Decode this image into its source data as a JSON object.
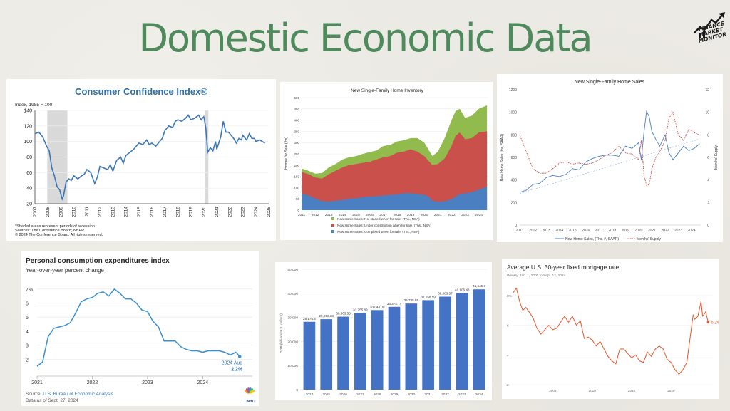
{
  "page": {
    "title": "Domestic Economic Data",
    "logo": {
      "line1": "FINANCE",
      "line2": "MARKET",
      "line3": "MONITOR"
    }
  },
  "chart_data": [
    {
      "id": "cci",
      "type": "line",
      "title": "Consumer Confidence Index®",
      "ylabel": "Index, 1985 = 100",
      "ylim": [
        20,
        140
      ],
      "yticks": [
        20,
        40,
        60,
        80,
        100,
        120,
        140
      ],
      "xticks": [
        "2007",
        "2008",
        "2009",
        "2010",
        "2011",
        "2012",
        "2013",
        "2014",
        "2015",
        "2016",
        "2017",
        "2018",
        "2019",
        "2020",
        "2021",
        "2022",
        "2023",
        "2024",
        "2025"
      ],
      "xrange": [
        2007,
        2025
      ],
      "recessions": [
        [
          2007.95,
          2009.5
        ],
        [
          2020.1,
          2020.35
        ]
      ],
      "x": [
        2007,
        2007.3,
        2007.6,
        2007.9,
        2008.1,
        2008.3,
        2008.5,
        2008.7,
        2008.9,
        2009.1,
        2009.2,
        2009.4,
        2009.6,
        2009.8,
        2010,
        2010.3,
        2010.6,
        2010.8,
        2011,
        2011.3,
        2011.6,
        2011.8,
        2012,
        2012.3,
        2012.6,
        2012.8,
        2013,
        2013.3,
        2013.6,
        2013.8,
        2014,
        2014.3,
        2014.6,
        2014.8,
        2015,
        2015.3,
        2015.6,
        2015.8,
        2016,
        2016.3,
        2016.6,
        2016.8,
        2017,
        2017.3,
        2017.6,
        2017.8,
        2018,
        2018.3,
        2018.6,
        2018.8,
        2019,
        2019.3,
        2019.6,
        2019.8,
        2020,
        2020.15,
        2020.3,
        2020.5,
        2020.7,
        2020.9,
        2021,
        2021.3,
        2021.5,
        2021.7,
        2021.9,
        2022,
        2022.3,
        2022.5,
        2022.7,
        2022.9,
        2023,
        2023.3,
        2023.5,
        2023.7,
        2023.9,
        2024,
        2024.3,
        2024.5,
        2024.7
      ],
      "y": [
        110,
        112,
        106,
        94,
        88,
        66,
        56,
        42,
        38,
        26,
        30,
        48,
        52,
        50,
        56,
        52,
        56,
        58,
        64,
        60,
        46,
        54,
        68,
        66,
        64,
        70,
        62,
        76,
        80,
        72,
        82,
        86,
        90,
        94,
        98,
        96,
        102,
        96,
        98,
        94,
        100,
        104,
        114,
        120,
        118,
        126,
        128,
        126,
        130,
        134,
        128,
        130,
        134,
        128,
        132,
        118,
        86,
        92,
        88,
        100,
        90,
        106,
        126,
        112,
        112,
        110,
        104,
        98,
        104,
        102,
        108,
        102,
        110,
        104,
        104,
        100,
        102,
        100,
        98
      ]
    },
    {
      "id": "inventory",
      "type": "area",
      "title": "New Single-Family Home Inventory",
      "ylabel": "Homes for Sale (ths)",
      "ylim": [
        0,
        500
      ],
      "yticks": [
        0,
        50,
        100,
        150,
        200,
        250,
        300,
        350,
        400,
        450,
        500
      ],
      "xticks": [
        "2011",
        "2012",
        "2013",
        "2014",
        "2015",
        "2016",
        "2017",
        "2018",
        "2019",
        "2020",
        "2021",
        "2022",
        "2023",
        "2024"
      ],
      "xrange": [
        2011,
        2024.7
      ],
      "x": [
        2011,
        2011.5,
        2012,
        2012.5,
        2013,
        2013.5,
        2014,
        2014.5,
        2015,
        2015.5,
        2016,
        2016.5,
        2017,
        2017.5,
        2018,
        2018.5,
        2019,
        2019.5,
        2020,
        2020.3,
        2020.6,
        2021,
        2021.5,
        2022,
        2022.3,
        2022.6,
        2023,
        2023.5,
        2024,
        2024.6
      ],
      "series": [
        {
          "name": "New Home Sales: Completed when for sale, (Ths., NSA)",
          "color": "#4a7fc1",
          "values": [
            75,
            65,
            52,
            40,
            38,
            42,
            45,
            50,
            52,
            58,
            60,
            62,
            64,
            68,
            70,
            75,
            75,
            72,
            68,
            60,
            42,
            36,
            40,
            48,
            60,
            72,
            75,
            80,
            90,
            105
          ]
        },
        {
          "name": "New Home Sales: Under construction when for sale, (Ths., NSA)",
          "color": "#c9504b",
          "values": [
            170,
            160,
            145,
            140,
            160,
            175,
            190,
            200,
            205,
            210,
            215,
            225,
            235,
            240,
            255,
            260,
            270,
            260,
            240,
            220,
            200,
            205,
            230,
            285,
            330,
            345,
            315,
            320,
            345,
            350
          ]
        },
        {
          "name": "New Home Sales: Not started when for sale, (Ths., NSA)",
          "color": "#92bb4e",
          "values": [
            185,
            175,
            162,
            165,
            190,
            205,
            225,
            235,
            240,
            250,
            258,
            265,
            285,
            290,
            305,
            310,
            320,
            320,
            300,
            270,
            240,
            260,
            320,
            400,
            440,
            450,
            410,
            420,
            450,
            465
          ]
        }
      ]
    },
    {
      "id": "homesales",
      "type": "line",
      "title": "New Single-Family Home Sales",
      "ylabel": "New Home Sales (ths, SAAR)",
      "y2label": "Months' Supply",
      "ylim": [
        0,
        1200
      ],
      "y2lim": [
        0,
        12
      ],
      "yticks": [
        0,
        200,
        400,
        600,
        800,
        1000,
        1200
      ],
      "y2ticks": [
        0,
        2,
        4,
        6,
        8,
        10,
        12
      ],
      "xticks": [
        "2011",
        "2012",
        "2013",
        "2014",
        "2015",
        "2016",
        "2017",
        "2018",
        "2019",
        "2020",
        "2021",
        "2022",
        "2023",
        "2024"
      ],
      "xrange": [
        2011,
        2024.7
      ],
      "series": [
        {
          "name": "New Home Sales, (Ths. #, SAAR)",
          "color": "#4a7fc1",
          "x": [
            2011,
            2011.5,
            2012,
            2012.5,
            2013,
            2013.5,
            2014,
            2014.5,
            2015,
            2015.5,
            2016,
            2016.5,
            2017,
            2017.5,
            2018,
            2018.5,
            2019,
            2019.5,
            2020,
            2020.2,
            2020.4,
            2020.6,
            2020.8,
            2021,
            2021.3,
            2021.6,
            2022,
            2022.3,
            2022.6,
            2023,
            2023.4,
            2023.8,
            2024.2,
            2024.6
          ],
          "values": [
            290,
            310,
            360,
            370,
            420,
            440,
            430,
            450,
            500,
            490,
            560,
            590,
            610,
            620,
            620,
            610,
            700,
            680,
            730,
            580,
            820,
            1010,
            960,
            830,
            760,
            700,
            800,
            640,
            580,
            640,
            700,
            660,
            680,
            720
          ]
        },
        {
          "name": "Months' Supply",
          "color": "#c0504d",
          "dashed": true,
          "x": [
            2011,
            2011.5,
            2012,
            2012.5,
            2013,
            2013.5,
            2014,
            2014.5,
            2015,
            2015.5,
            2016,
            2016.5,
            2017,
            2017.5,
            2018,
            2018.5,
            2019,
            2019.5,
            2020,
            2020.2,
            2020.4,
            2020.6,
            2020.8,
            2021,
            2021.3,
            2021.6,
            2022,
            2022.3,
            2022.6,
            2023,
            2023.4,
            2023.8,
            2024.2,
            2024.6
          ],
          "values": [
            8,
            6.5,
            5,
            4.6,
            4.6,
            5,
            5.5,
            5.6,
            5.4,
            5.5,
            5.4,
            5.5,
            5.8,
            6.2,
            6.4,
            7,
            6.4,
            6.3,
            5.8,
            7.5,
            4.5,
            3.5,
            3.6,
            5,
            6,
            6.5,
            7.5,
            9.5,
            10,
            8,
            7.5,
            8.5,
            8.2,
            8
          ]
        }
      ]
    },
    {
      "id": "pce",
      "type": "line",
      "title": "Personal consumption expenditures index",
      "subtitle": "Year-over-year percent change",
      "ylim": [
        1,
        7.5
      ],
      "yticks": [
        2,
        3,
        4,
        5,
        6,
        7
      ],
      "ytick_labels": [
        "2",
        "3",
        "4",
        "5",
        "6",
        "7%"
      ],
      "xticks": [
        "2021",
        "2022",
        "2023",
        "2024"
      ],
      "xrange": [
        2021,
        2024.9
      ],
      "x": [
        2021,
        2021.1,
        2021.2,
        2021.3,
        2021.4,
        2021.5,
        2021.6,
        2021.7,
        2021.8,
        2021.9,
        2022,
        2022.1,
        2022.2,
        2022.3,
        2022.4,
        2022.5,
        2022.6,
        2022.7,
        2022.8,
        2022.9,
        2023,
        2023.1,
        2023.2,
        2023.3,
        2023.4,
        2023.5,
        2023.6,
        2023.7,
        2023.8,
        2023.9,
        2024,
        2024.1,
        2024.2,
        2024.3,
        2024.4,
        2024.5,
        2024.6,
        2024.67
      ],
      "y": [
        1.5,
        1.8,
        3.6,
        4.2,
        4.3,
        4.4,
        4.6,
        5.3,
        6.1,
        6.3,
        6.4,
        6.7,
        6.8,
        6.5,
        7.0,
        6.7,
        6.3,
        6.3,
        6.0,
        5.5,
        5.4,
        4.7,
        4.3,
        3.3,
        3.3,
        3.3,
        2.9,
        2.7,
        2.6,
        2.6,
        2.5,
        2.6,
        2.6,
        2.6,
        2.5,
        2.3,
        2.5,
        2.2
      ],
      "annotation": {
        "label1": "2024 Aug",
        "label2": "2.2%"
      },
      "source_prefix": "Source: ",
      "source_link": "U.S. Bureau of Economic Analysis",
      "date_text": "Data as of Sept. 27, 2024",
      "brand": "CNBC"
    },
    {
      "id": "gdp",
      "type": "bar",
      "ylabel": "GDP (billions U.S. dollars)",
      "ylim": [
        0,
        50000
      ],
      "yticks": [
        0,
        10000,
        20000,
        30000,
        40000,
        50000
      ],
      "ytick_labels": [
        "0",
        "10,000",
        "20,000",
        "30,000",
        "40,000",
        "50,000"
      ],
      "categories": [
        "2024",
        "2025",
        "2026",
        "2027",
        "2028",
        "2029",
        "2030",
        "2031",
        "2032",
        "2033",
        "2034"
      ],
      "values": [
        28176.6,
        29256.38,
        30303.55,
        31755.89,
        33043.09,
        34374.74,
        35745.85,
        37158.59,
        38603.37,
        40106.48,
        41645.7
      ],
      "value_labels": [
        "28,176.6",
        "29,256.38",
        "30,303.55",
        "31,755.89",
        "33,043.09",
        "34,374.74",
        "35,745.85",
        "37,158.59",
        "38,603.37",
        "40,106.48",
        "41,645.7"
      ],
      "color": "#4472c4"
    },
    {
      "id": "mortgage",
      "type": "line",
      "title": "Average U.S. 30-year fixed mortgage rate",
      "subtitle": "Weekly, Jan. 1, 2000 to Sept. 12, 2024",
      "ylim": [
        2,
        9
      ],
      "yticks": [
        2,
        4,
        6,
        8
      ],
      "ytick_labels": [
        "2",
        "4",
        "6",
        "8%"
      ],
      "xticks": [
        "2005",
        "2010",
        "2015",
        "2020"
      ],
      "xrange": [
        2000,
        2025.3
      ],
      "x": [
        2000,
        2000.4,
        2000.8,
        2001.2,
        2001.6,
        2002,
        2002.5,
        2003,
        2003.5,
        2004,
        2004.5,
        2005,
        2005.5,
        2006,
        2006.5,
        2007,
        2007.5,
        2008,
        2008.5,
        2009,
        2009.5,
        2010,
        2010.5,
        2011,
        2011.5,
        2012,
        2012.5,
        2013,
        2013.5,
        2014,
        2014.5,
        2015,
        2015.5,
        2016,
        2016.5,
        2017,
        2017.5,
        2018,
        2018.5,
        2019,
        2019.5,
        2020,
        2020.5,
        2021,
        2021.5,
        2022,
        2022.4,
        2022.8,
        2023,
        2023.4,
        2023.8,
        2024,
        2024.4,
        2024.7
      ],
      "y": [
        8.2,
        8.5,
        7.6,
        7.0,
        7.2,
        6.9,
        6.5,
        5.8,
        5.4,
        5.7,
        6.0,
        5.7,
        5.8,
        6.2,
        6.6,
        6.2,
        6.6,
        6.0,
        6.3,
        5.1,
        5.2,
        5.0,
        4.6,
        4.9,
        4.4,
        3.9,
        3.6,
        3.4,
        4.4,
        4.4,
        4.1,
        3.8,
        4.0,
        3.6,
        3.5,
        4.2,
        3.9,
        4.4,
        4.6,
        4.4,
        3.7,
        3.5,
        3.0,
        2.7,
        3.0,
        3.5,
        5.1,
        6.7,
        6.4,
        6.6,
        7.6,
        6.6,
        6.9,
        6.2
      ],
      "end_label": "6.2%"
    }
  ],
  "notes": {
    "cci_note1": "*Shaded areas represent periods of recession.",
    "cci_note2": "Sources: The Conference Board; NBER",
    "cci_note3": "© 2024 The Conference Board. All rights reserved."
  }
}
